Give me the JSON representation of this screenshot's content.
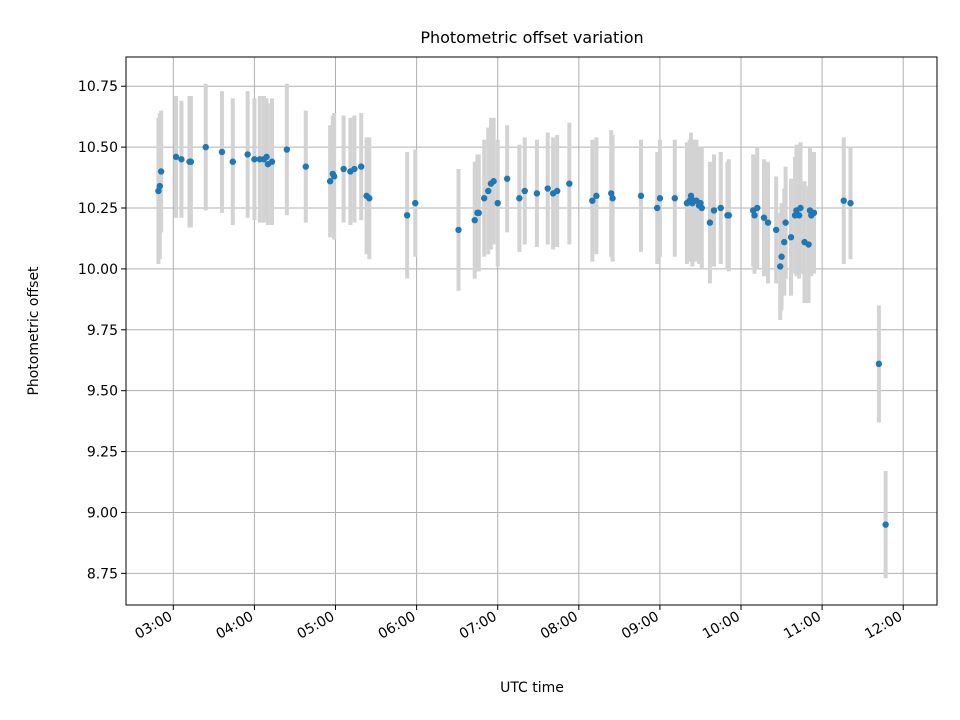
{
  "chart_data": {
    "type": "scatter",
    "title": "Photometric offset variation",
    "xlabel": "UTC time",
    "ylabel": "Photometric offset",
    "xlim": [
      "02:25",
      "12:25"
    ],
    "ylim": [
      8.62,
      10.87
    ],
    "grid": true,
    "x_ticks": [
      "03:00",
      "04:00",
      "05:00",
      "06:00",
      "07:00",
      "08:00",
      "09:00",
      "10:00",
      "11:00",
      "12:00"
    ],
    "y_ticks": [
      "8.75",
      "9.00",
      "9.25",
      "9.50",
      "9.75",
      "10.00",
      "10.25",
      "10.50",
      "10.75"
    ],
    "colors": {
      "point": "#1f77b4",
      "errorbar": "#d3d3d3",
      "grid": "#b0b0b0"
    },
    "series": [
      {
        "x": [
          "02:49",
          "02:50",
          "02:51",
          "03:02",
          "03:06",
          "03:12",
          "03:13",
          "03:24",
          "03:36",
          "03:44",
          "03:55",
          "04:00",
          "04:04",
          "04:07",
          "04:09",
          "04:10",
          "04:13",
          "04:24",
          "04:38",
          "04:56",
          "04:58",
          "04:59",
          "05:06",
          "05:11",
          "05:14",
          "05:19",
          "05:23",
          "05:25",
          "05:53",
          "05:59",
          "06:31",
          "06:43",
          "06:45",
          "06:46",
          "06:50",
          "06:53",
          "06:55",
          "06:57",
          "07:00",
          "07:07",
          "07:16",
          "07:20",
          "07:29",
          "07:37",
          "07:41",
          "07:44",
          "07:53",
          "08:10",
          "08:13",
          "08:24",
          "08:25",
          "08:46",
          "08:58",
          "09:00",
          "09:11",
          "09:20",
          "09:22",
          "09:23",
          "09:24",
          "09:25",
          "09:27",
          "09:29",
          "09:30",
          "09:31",
          "09:37",
          "09:40",
          "09:45",
          "09:50",
          "09:51",
          "10:09",
          "10:10",
          "10:12",
          "10:17",
          "10:20",
          "10:26",
          "10:29",
          "10:30",
          "10:32",
          "10:33",
          "10:37",
          "10:40",
          "10:41",
          "10:43",
          "10:44",
          "10:47",
          "10:50",
          "10:51",
          "10:52",
          "10:54",
          "11:16",
          "11:21",
          "11:42",
          "11:47"
        ],
        "y": [
          10.32,
          10.34,
          10.4,
          10.46,
          10.45,
          10.44,
          10.44,
          10.5,
          10.48,
          10.44,
          10.47,
          10.45,
          10.45,
          10.45,
          10.46,
          10.43,
          10.44,
          10.49,
          10.42,
          10.36,
          10.39,
          10.38,
          10.41,
          10.4,
          10.41,
          10.42,
          10.3,
          10.29,
          10.22,
          10.27,
          10.16,
          10.2,
          10.23,
          10.23,
          10.29,
          10.32,
          10.35,
          10.36,
          10.27,
          10.37,
          10.29,
          10.32,
          10.31,
          10.33,
          10.31,
          10.32,
          10.35,
          10.28,
          10.3,
          10.31,
          10.29,
          10.3,
          10.25,
          10.29,
          10.29,
          10.27,
          10.28,
          10.3,
          10.27,
          10.28,
          10.28,
          10.26,
          10.27,
          10.25,
          10.19,
          10.24,
          10.25,
          10.22,
          10.22,
          10.24,
          10.22,
          10.25,
          10.21,
          10.19,
          10.16,
          10.01,
          10.05,
          10.11,
          10.19,
          10.13,
          10.22,
          10.24,
          10.22,
          10.25,
          10.11,
          10.1,
          10.24,
          10.22,
          10.23,
          10.28,
          10.27,
          9.61,
          8.95
        ],
        "err": [
          0.3,
          0.3,
          0.25,
          0.25,
          0.24,
          0.27,
          0.27,
          0.26,
          0.25,
          0.26,
          0.26,
          0.25,
          0.26,
          0.26,
          0.24,
          0.25,
          0.26,
          0.27,
          0.23,
          0.23,
          0.24,
          0.26,
          0.22,
          0.22,
          0.22,
          0.22,
          0.24,
          0.25,
          0.26,
          0.22,
          0.25,
          0.24,
          0.24,
          0.24,
          0.24,
          0.26,
          0.27,
          0.26,
          0.26,
          0.22,
          0.22,
          0.22,
          0.22,
          0.23,
          0.23,
          0.23,
          0.25,
          0.25,
          0.24,
          0.26,
          0.26,
          0.23,
          0.23,
          0.24,
          0.24,
          0.25,
          0.25,
          0.26,
          0.26,
          0.25,
          0.25,
          0.24,
          0.23,
          0.25,
          0.25,
          0.23,
          0.23,
          0.22,
          0.23,
          0.23,
          0.24,
          0.25,
          0.24,
          0.25,
          0.22,
          0.22,
          0.22,
          0.22,
          0.23,
          0.24,
          0.24,
          0.27,
          0.26,
          0.27,
          0.25,
          0.24,
          0.26,
          0.25,
          0.25,
          0.26,
          0.23,
          0.24,
          0.22
        ]
      }
    ]
  }
}
